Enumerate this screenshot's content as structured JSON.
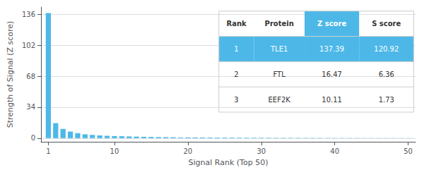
{
  "chart_data": {
    "type": "bar",
    "xlabel": "Signal Rank (Top 50)",
    "ylabel": "Strength of Signal (Z score)",
    "x": [
      1,
      2,
      3,
      4,
      5,
      6,
      7,
      8,
      9,
      10,
      11,
      12,
      13,
      14,
      15,
      16,
      17,
      18,
      19,
      20,
      21,
      22,
      23,
      24,
      25,
      26,
      27,
      28,
      29,
      30,
      31,
      32,
      33,
      34,
      35,
      36,
      37,
      38,
      39,
      40,
      41,
      42,
      43,
      44,
      45,
      46,
      47,
      48,
      49,
      50
    ],
    "values": [
      137.39,
      16.47,
      10.11,
      7.2,
      5.5,
      4.2,
      3.5,
      3.0,
      2.6,
      2.3,
      2.1,
      1.9,
      1.7,
      1.5,
      1.35,
      1.2,
      1.1,
      1.0,
      0.9,
      0.85,
      0.8,
      0.75,
      0.7,
      0.65,
      0.62,
      0.58,
      0.55,
      0.52,
      0.5,
      0.47,
      0.45,
      0.43,
      0.41,
      0.39,
      0.37,
      0.35,
      0.33,
      0.31,
      0.3,
      0.28,
      0.27,
      0.25,
      0.24,
      0.22,
      0.21,
      0.2,
      0.19,
      0.18,
      0.17,
      0.16
    ],
    "color": "#4db8e8",
    "xlim": [
      0,
      51
    ],
    "ylim": [
      -4,
      144
    ],
    "xticks": [
      1,
      10,
      20,
      30,
      40,
      50
    ],
    "yticks": [
      0,
      34,
      68,
      102,
      136
    ],
    "grid": true,
    "table": {
      "rows": [
        [
          "Rank",
          "Protein",
          "Z score",
          "S score"
        ],
        [
          "1",
          "TLE1",
          "137.39",
          "120.92"
        ],
        [
          "2",
          "FTL",
          "16.47",
          "6.36"
        ],
        [
          "3",
          "EEF2K",
          "10.11",
          "1.73"
        ]
      ],
      "colors": [
        [
          null,
          null,
          "#4db8e8",
          null
        ],
        [
          "#4db8e8",
          "#4db8e8",
          "#4db8e8",
          "#4db8e8"
        ],
        [
          null,
          null,
          null,
          null
        ],
        [
          null,
          null,
          null,
          null
        ]
      ]
    }
  }
}
